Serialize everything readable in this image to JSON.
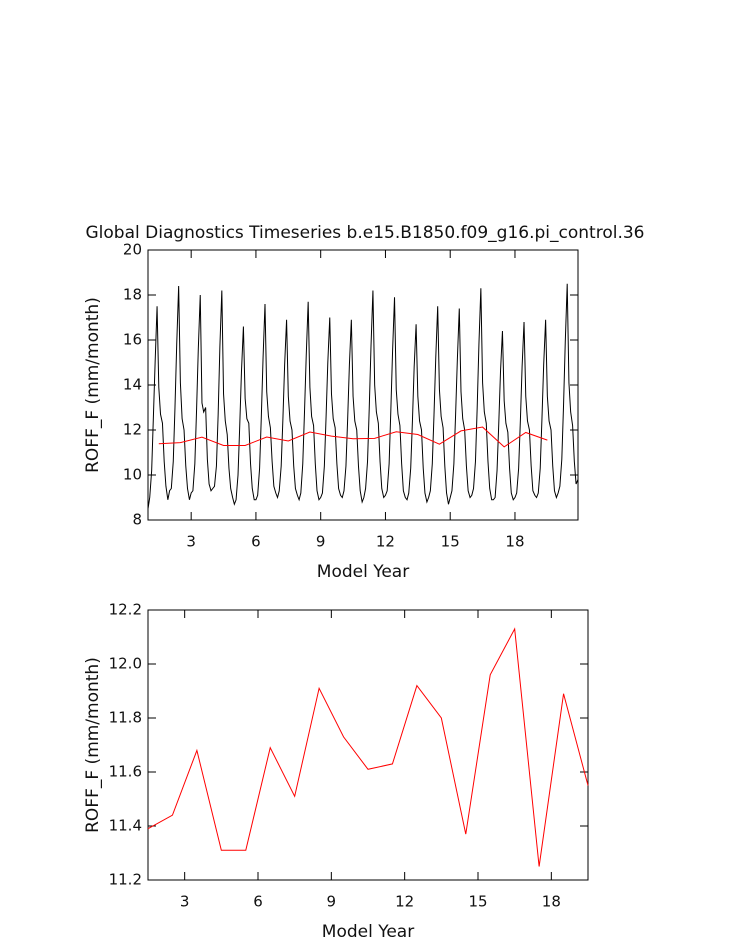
{
  "chart_data": [
    {
      "type": "line",
      "title": "Global Diagnostics Timeseries b.e15.B1850.f09_g16.pi_control.36",
      "xlabel": "Model Year",
      "ylabel": "ROFF_F (mm/month)",
      "xlim": [
        1,
        20.92
      ],
      "xticks": [
        3,
        6,
        9,
        12,
        15,
        18
      ],
      "ylim": [
        8,
        20
      ],
      "yticks": [
        8,
        10,
        12,
        14,
        16,
        18,
        20
      ],
      "series": [
        {
          "color": "#000000",
          "x": [
            1.0,
            1.08,
            1.17,
            1.25,
            1.33,
            1.42,
            1.5,
            1.58,
            1.67,
            1.75,
            1.83,
            1.92,
            2.0,
            2.08,
            2.17,
            2.25,
            2.33,
            2.42,
            2.5,
            2.58,
            2.67,
            2.75,
            2.83,
            2.92,
            3.0,
            3.08,
            3.17,
            3.25,
            3.33,
            3.42,
            3.5,
            3.58,
            3.67,
            3.75,
            3.83,
            3.92,
            4.0,
            4.08,
            4.17,
            4.25,
            4.33,
            4.42,
            4.5,
            4.58,
            4.67,
            4.75,
            4.83,
            4.92,
            5.0,
            5.08,
            5.17,
            5.25,
            5.33,
            5.42,
            5.5,
            5.58,
            5.67,
            5.75,
            5.83,
            5.92,
            6.0,
            6.08,
            6.17,
            6.25,
            6.33,
            6.42,
            6.5,
            6.58,
            6.67,
            6.75,
            6.83,
            6.92,
            7.0,
            7.08,
            7.17,
            7.25,
            7.33,
            7.42,
            7.5,
            7.58,
            7.67,
            7.75,
            7.83,
            7.92,
            8.0,
            8.08,
            8.17,
            8.25,
            8.33,
            8.42,
            8.5,
            8.58,
            8.67,
            8.75,
            8.83,
            8.92,
            9.0,
            9.08,
            9.17,
            9.25,
            9.33,
            9.42,
            9.5,
            9.58,
            9.67,
            9.75,
            9.83,
            9.92,
            10.0,
            10.08,
            10.17,
            10.25,
            10.33,
            10.42,
            10.5,
            10.58,
            10.67,
            10.75,
            10.83,
            10.92,
            11.0,
            11.08,
            11.17,
            11.25,
            11.33,
            11.42,
            11.5,
            11.58,
            11.67,
            11.75,
            11.83,
            11.92,
            12.0,
            12.08,
            12.17,
            12.25,
            12.33,
            12.42,
            12.5,
            12.58,
            12.67,
            12.75,
            12.83,
            12.92,
            13.0,
            13.08,
            13.17,
            13.25,
            13.33,
            13.42,
            13.5,
            13.58,
            13.67,
            13.75,
            13.83,
            13.92,
            14.0,
            14.08,
            14.17,
            14.25,
            14.33,
            14.42,
            14.5,
            14.58,
            14.67,
            14.75,
            14.83,
            14.92,
            15.0,
            15.08,
            15.17,
            15.25,
            15.33,
            15.42,
            15.5,
            15.58,
            15.67,
            15.75,
            15.83,
            15.92,
            16.0,
            16.08,
            16.17,
            16.25,
            16.33,
            16.42,
            16.5,
            16.58,
            16.67,
            16.75,
            16.83,
            16.92,
            17.0,
            17.08,
            17.17,
            17.25,
            17.33,
            17.42,
            17.5,
            17.58,
            17.67,
            17.75,
            17.83,
            17.92,
            18.0,
            18.08,
            18.17,
            18.25,
            18.33,
            18.42,
            18.5,
            18.58,
            18.67,
            18.75,
            18.83,
            18.92,
            19.0,
            19.08,
            19.17,
            19.25,
            19.33,
            19.42,
            19.5,
            19.58,
            19.67,
            19.75,
            19.83,
            19.92,
            20.0,
            20.08,
            20.17,
            20.25,
            20.33,
            20.42,
            20.5,
            20.58,
            20.67,
            20.75,
            20.83,
            20.92
          ],
          "values": [
            8.5,
            9.0,
            10.2,
            12.6,
            15.0,
            17.5,
            13.9,
            12.7,
            12.3,
            10.6,
            9.5,
            8.9,
            9.3,
            9.4,
            10.6,
            13.0,
            15.8,
            18.4,
            14.1,
            12.5,
            12.0,
            10.4,
            9.4,
            8.9,
            9.2,
            9.3,
            10.5,
            12.9,
            15.6,
            18.0,
            13.2,
            12.8,
            13.0,
            10.7,
            9.6,
            9.3,
            9.4,
            9.5,
            10.4,
            12.7,
            15.7,
            18.2,
            13.6,
            12.4,
            11.8,
            10.3,
            9.4,
            9.0,
            8.7,
            8.9,
            10.0,
            12.2,
            14.6,
            16.6,
            13.4,
            12.5,
            12.3,
            10.5,
            9.4,
            8.9,
            8.9,
            9.1,
            10.3,
            12.6,
            15.2,
            17.6,
            13.7,
            12.6,
            12.1,
            10.6,
            9.5,
            9.2,
            9.0,
            9.3,
            10.4,
            12.5,
            14.9,
            16.9,
            13.5,
            12.4,
            12.0,
            10.4,
            9.4,
            9.1,
            8.9,
            9.2,
            10.5,
            12.8,
            15.3,
            17.7,
            13.9,
            12.6,
            12.2,
            10.5,
            9.3,
            8.9,
            9.0,
            9.2,
            10.4,
            12.6,
            15.0,
            17.0,
            13.6,
            12.5,
            12.1,
            10.5,
            9.4,
            9.1,
            9.0,
            9.3,
            10.4,
            12.5,
            14.9,
            16.9,
            13.5,
            12.4,
            12.0,
            10.4,
            9.3,
            8.8,
            9.0,
            9.4,
            10.6,
            13.0,
            15.7,
            18.2,
            14.0,
            12.8,
            12.3,
            10.6,
            9.4,
            9.0,
            9.1,
            9.3,
            10.5,
            12.9,
            15.5,
            17.9,
            13.8,
            12.7,
            12.2,
            10.5,
            9.3,
            9.0,
            8.9,
            9.2,
            10.3,
            12.4,
            14.8,
            16.7,
            13.5,
            12.4,
            12.0,
            10.3,
            9.2,
            8.8,
            9.0,
            9.3,
            10.5,
            12.7,
            15.2,
            17.5,
            13.8,
            12.6,
            12.1,
            10.4,
            9.2,
            8.7,
            9.0,
            9.3,
            10.5,
            12.7,
            15.1,
            17.4,
            13.7,
            12.5,
            12.0,
            10.4,
            9.3,
            9.0,
            9.1,
            9.4,
            10.6,
            13.0,
            15.8,
            18.3,
            14.1,
            12.8,
            12.3,
            10.6,
            9.4,
            8.9,
            8.9,
            9.0,
            10.2,
            12.3,
            14.6,
            16.4,
            13.3,
            12.3,
            11.9,
            10.3,
            9.2,
            8.9,
            9.0,
            9.2,
            10.3,
            12.4,
            14.8,
            16.8,
            13.5,
            12.4,
            12.0,
            10.4,
            9.3,
            9.1,
            9.0,
            9.2,
            10.3,
            12.5,
            14.9,
            16.9,
            13.5,
            12.4,
            12.0,
            10.4,
            9.3,
            9.0,
            9.2,
            9.5,
            10.7,
            13.1,
            15.9,
            18.5,
            14.1,
            12.8,
            12.2,
            10.6,
            9.6,
            9.8
          ]
        },
        {
          "color": "#ff0000",
          "x": [
            1.5,
            2.5,
            3.5,
            4.5,
            5.5,
            6.5,
            7.5,
            8.5,
            9.5,
            10.5,
            11.5,
            12.5,
            13.5,
            14.5,
            15.5,
            16.5,
            17.5,
            18.5,
            19.5
          ],
          "values": [
            11.39,
            11.44,
            11.68,
            11.31,
            11.31,
            11.69,
            11.51,
            11.91,
            11.73,
            11.61,
            11.63,
            11.92,
            11.8,
            11.37,
            11.96,
            12.13,
            11.25,
            11.89,
            11.55
          ]
        }
      ]
    },
    {
      "type": "line",
      "xlabel": "Model Year",
      "ylabel": "ROFF_F (mm/month)",
      "xlim": [
        1.5,
        19.5
      ],
      "xticks": [
        3,
        6,
        9,
        12,
        15,
        18
      ],
      "ylim": [
        11.2,
        12.2
      ],
      "yticks": [
        11.2,
        11.4,
        11.6,
        11.8,
        {
          "value": 12,
          "label": "12.0"
        },
        12.2
      ],
      "series": [
        {
          "color": "#ff0000",
          "x": [
            1.5,
            2.5,
            3.5,
            4.5,
            5.5,
            6.5,
            7.5,
            8.5,
            9.5,
            10.5,
            11.5,
            12.5,
            13.5,
            14.5,
            15.5,
            16.5,
            17.5,
            18.5,
            19.5
          ],
          "values": [
            11.39,
            11.44,
            11.68,
            11.31,
            11.31,
            11.69,
            11.51,
            11.91,
            11.73,
            11.61,
            11.63,
            11.92,
            11.8,
            11.37,
            11.96,
            12.13,
            11.25,
            11.89,
            11.55
          ]
        }
      ]
    }
  ]
}
